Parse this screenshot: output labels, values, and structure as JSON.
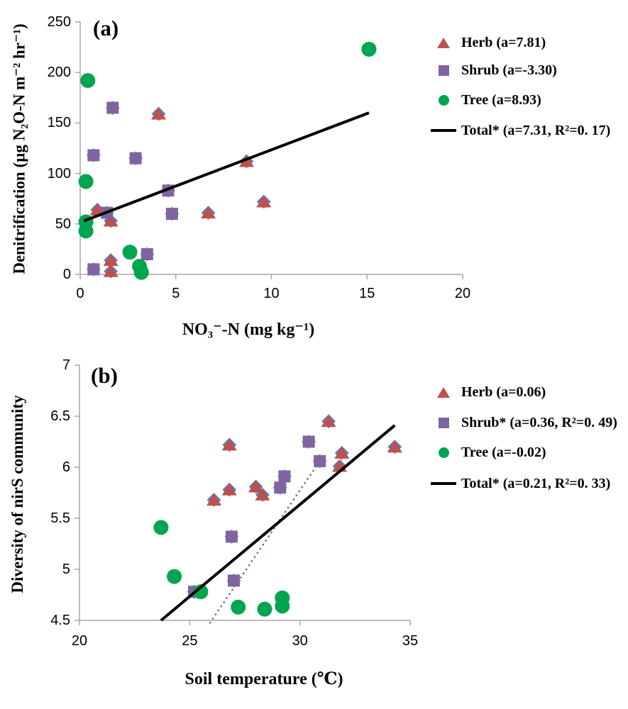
{
  "chart_data": [
    {
      "type": "scatter",
      "panel_label": "(a)",
      "xlabel": "NO₃⁻-N  (mg kg⁻¹)",
      "ylabel": "Denitrification (µg N₂O-N m⁻² hr⁻¹)",
      "xlim": [
        0,
        20
      ],
      "ylim": [
        0,
        250
      ],
      "x_ticks": [
        0,
        5,
        10,
        15,
        20
      ],
      "y_ticks": [
        0,
        50,
        100,
        150,
        200,
        250
      ],
      "x_tick_labels": [
        "0",
        "5",
        "10",
        "15",
        "20"
      ],
      "y_tick_labels": [
        "0",
        "50",
        "100",
        "150",
        "200",
        "250"
      ],
      "grid": false,
      "legend_position": "outside-right",
      "marker_underlay": {
        "shape": "diamond",
        "color": "#4F81BD",
        "applies_to": "every data point"
      },
      "series": [
        {
          "name": "Herb",
          "legend_label": "Herb (a=7.81)",
          "marker": "triangle",
          "color": "#C0504D",
          "points": [
            [
              0.9,
              64
            ],
            [
              1.6,
              53
            ],
            [
              4.1,
              159
            ],
            [
              6.7,
              61
            ],
            [
              8.7,
              112
            ],
            [
              9.6,
              72
            ],
            [
              1.6,
              14
            ],
            [
              1.6,
              3
            ]
          ]
        },
        {
          "name": "Shrub",
          "legend_label": "Shrub (a=-3.30)",
          "marker": "square",
          "color": "#8064A2",
          "points": [
            [
              0.7,
              118
            ],
            [
              1.7,
              165
            ],
            [
              2.9,
              115
            ],
            [
              1.4,
              61
            ],
            [
              4.6,
              83
            ],
            [
              4.8,
              60
            ],
            [
              3.5,
              20
            ],
            [
              0.7,
              5
            ]
          ]
        },
        {
          "name": "Tree",
          "legend_label": "Tree (a=8.93)",
          "marker": "circle",
          "color": "#00A550",
          "points": [
            [
              0.4,
              192
            ],
            [
              0.3,
              92
            ],
            [
              0.3,
              52
            ],
            [
              0.3,
              43
            ],
            [
              2.6,
              22
            ],
            [
              3.1,
              8
            ],
            [
              3.2,
              2
            ],
            [
              15.1,
              223
            ]
          ]
        },
        {
          "name": "Total",
          "legend_label": "Total* (a=7.31, R²=0. 17)",
          "marker": "line",
          "color": "#000000",
          "points": [],
          "trend": {
            "style": "solid",
            "from": [
              0.2,
              53
            ],
            "to": [
              15.1,
              160
            ]
          }
        }
      ]
    },
    {
      "type": "scatter",
      "panel_label": "(b)",
      "xlabel": "Soil temperature (℃)",
      "ylabel": "Diversity of nirS community",
      "xlim": [
        20,
        35
      ],
      "ylim": [
        4.5,
        7
      ],
      "x_ticks": [
        20,
        25,
        30,
        35
      ],
      "y_ticks": [
        4.5,
        5,
        5.5,
        6,
        6.5,
        7
      ],
      "x_tick_labels": [
        "20",
        "25",
        "30",
        "35"
      ],
      "y_tick_labels": [
        "4.5",
        "5",
        "5.5",
        "6",
        "6.5",
        "7"
      ],
      "grid": false,
      "legend_position": "outside-right",
      "marker_underlay": {
        "shape": "diamond",
        "color": "#4F81BD",
        "applies_to": "every data point"
      },
      "series": [
        {
          "name": "Herb",
          "legend_label": "Herb (a=0.06)",
          "marker": "triangle",
          "color": "#C0504D",
          "points": [
            [
              26.1,
              5.68
            ],
            [
              26.8,
              5.78
            ],
            [
              28.0,
              5.81
            ],
            [
              28.3,
              5.73
            ],
            [
              26.8,
              6.22
            ],
            [
              31.3,
              6.45
            ],
            [
              31.9,
              6.14
            ],
            [
              31.8,
              6.01
            ],
            [
              34.3,
              6.2
            ]
          ]
        },
        {
          "name": "Shrub",
          "legend_label": "Shrub* (a=0.36, R²=0. 49)",
          "marker": "square",
          "color": "#8064A2",
          "points": [
            [
              30.4,
              6.25
            ],
            [
              30.9,
              6.06
            ],
            [
              29.3,
              5.91
            ],
            [
              29.1,
              5.8
            ],
            [
              26.9,
              5.32
            ],
            [
              25.2,
              4.78
            ],
            [
              27.0,
              4.89
            ]
          ],
          "trend": {
            "style": "dotted",
            "from": [
              25.9,
              4.47
            ],
            "to": [
              30.9,
              6.06
            ]
          }
        },
        {
          "name": "Tree",
          "legend_label": "Tree (a=-0.02)",
          "marker": "circle",
          "color": "#00A550",
          "points": [
            [
              23.7,
              5.41
            ],
            [
              24.3,
              4.93
            ],
            [
              25.5,
              4.78
            ],
            [
              27.2,
              4.63
            ],
            [
              28.4,
              4.61
            ],
            [
              29.2,
              4.72
            ],
            [
              29.2,
              4.64
            ]
          ]
        },
        {
          "name": "Total",
          "legend_label": "Total* (a=0.21, R²=0. 33)",
          "marker": "line",
          "color": "#000000",
          "points": [],
          "trend": {
            "style": "solid",
            "from": [
              23.7,
              4.5
            ],
            "to": [
              34.3,
              6.41
            ]
          }
        }
      ]
    }
  ],
  "colors": {
    "herb": "#C0504D",
    "shrub": "#8064A2",
    "tree": "#00A550",
    "total_diamond": "#4F81BD",
    "axis": "#A6A6A6",
    "trend_line": "#000000"
  }
}
